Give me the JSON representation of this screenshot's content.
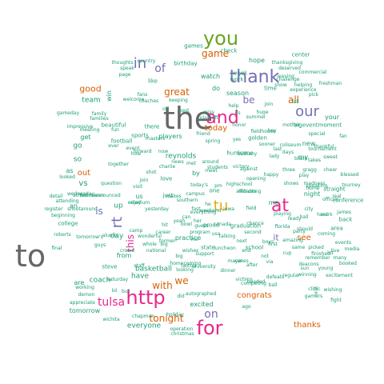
{
  "palette": {
    "grey": "#666666",
    "teal": "#1b9e77",
    "orange": "#d95f02",
    "purple": "#7570b3",
    "magenta": "#e7298a",
    "green": "#66a61e",
    "gold": "#e6ab02",
    "brown": "#a6761d"
  },
  "words": [
    {
      "text": "the",
      "color": "grey"
    },
    {
      "text": "to",
      "color": "grey"
    },
    {
      "text": "you",
      "color": "green"
    },
    {
      "text": "and",
      "color": "magenta"
    },
    {
      "text": "http",
      "color": "magenta"
    },
    {
      "text": "for",
      "color": "magenta"
    },
    {
      "text": "at",
      "color": "magenta"
    },
    {
      "text": "thank",
      "color": "purple"
    },
    {
      "text": "our",
      "color": "purple"
    },
    {
      "text": "in",
      "color": "purple"
    },
    {
      "text": "game",
      "color": "orange"
    },
    {
      "text": "of",
      "color": "purple"
    },
    {
      "text": "tu",
      "color": "gold"
    },
    {
      "text": "all",
      "color": "orange"
    },
    {
      "text": "tulsa",
      "color": "magenta"
    },
    {
      "text": "rt",
      "color": "purple"
    },
    {
      "text": "great",
      "color": "orange"
    },
    {
      "text": "with",
      "color": "orange"
    },
    {
      "text": "we",
      "color": "orange"
    },
    {
      "text": "on",
      "color": "purple"
    },
    {
      "text": "good",
      "color": "orange"
    },
    {
      "text": "this",
      "color": "magenta"
    },
    {
      "text": "tonight",
      "color": "orange"
    },
    {
      "text": "thanks",
      "color": "orange"
    },
    {
      "text": "today",
      "color": "orange"
    },
    {
      "text": "congrats",
      "color": "orange"
    },
    {
      "text": "out",
      "color": "orange"
    },
    {
      "text": "be",
      "color": "purple"
    },
    {
      "text": "is",
      "color": "purple"
    },
    {
      "text": "see",
      "color": "orange"
    },
    {
      "text": "it",
      "color": "purple"
    },
    {
      "text": "team",
      "color": "teal"
    },
    {
      "text": "coach",
      "color": "teal"
    },
    {
      "text": "basketball",
      "color": "teal"
    },
    {
      "text": "day",
      "color": "teal"
    },
    {
      "text": "have",
      "color": "teal"
    },
    {
      "text": "are",
      "color": "teal"
    },
    {
      "text": "from",
      "color": "teal"
    },
    {
      "text": "go",
      "color": "teal"
    },
    {
      "text": "vs",
      "color": "teal"
    },
    {
      "text": "so",
      "color": "teal"
    },
    {
      "text": "up",
      "color": "teal"
    },
    {
      "text": "us",
      "color": "teal"
    },
    {
      "text": "your",
      "color": "teal"
    },
    {
      "text": "my",
      "color": "teal"
    },
    {
      "text": "an",
      "color": "teal"
    },
    {
      "text": "as",
      "color": "teal"
    },
    {
      "text": "do",
      "color": "teal"
    },
    {
      "text": "by",
      "color": "teal"
    },
    {
      "text": "me",
      "color": "teal"
    },
    {
      "text": "new",
      "color": "teal"
    },
    {
      "text": "get",
      "color": "teal"
    },
    {
      "text": "center",
      "color": "teal"
    },
    {
      "text": "night",
      "color": "teal"
    },
    {
      "text": "reynolds",
      "color": "teal"
    },
    {
      "text": "everyone",
      "color": "teal"
    },
    {
      "text": "tomorrow",
      "color": "teal"
    },
    {
      "text": "excited",
      "color": "teal"
    },
    {
      "text": "players",
      "color": "teal"
    },
    {
      "text": "season",
      "color": "teal"
    },
    {
      "text": "football",
      "color": "teal"
    },
    {
      "text": "golden",
      "color": "teal"
    },
    {
      "text": "hurricane",
      "color": "teal"
    },
    {
      "text": "back",
      "color": "teal"
    },
    {
      "text": "area",
      "color": "teal"
    },
    {
      "text": "practice",
      "color": "teal"
    },
    {
      "text": "watch",
      "color": "teal"
    },
    {
      "text": "hope",
      "color": "teal"
    },
    {
      "text": "week",
      "color": "teal"
    },
    {
      "text": "work",
      "color": "teal"
    },
    {
      "text": "school",
      "color": "teal"
    },
    {
      "text": "college",
      "color": "teal"
    },
    {
      "text": "sports",
      "color": "teal"
    },
    {
      "text": "proud",
      "color": "teal"
    },
    {
      "text": "state",
      "color": "teal"
    },
    {
      "text": "one",
      "color": "teal"
    },
    {
      "text": "there",
      "color": "teal"
    },
    {
      "text": "just",
      "color": "teal"
    },
    {
      "text": "love",
      "color": "teal"
    },
    {
      "text": "time",
      "color": "teal"
    },
    {
      "text": "win",
      "color": "teal"
    },
    {
      "text": "like",
      "color": "teal"
    },
    {
      "text": "games",
      "color": "teal"
    },
    {
      "text": "check",
      "color": "teal"
    },
    {
      "text": "thanksgiving",
      "color": "teal"
    },
    {
      "text": "straight",
      "color": "teal"
    },
    {
      "text": "birthday",
      "color": "teal"
    },
    {
      "text": "deserved",
      "color": "teal"
    },
    {
      "text": "freshman",
      "color": "teal"
    },
    {
      "text": "helping",
      "color": "teal"
    },
    {
      "text": "commercial",
      "color": "teal"
    },
    {
      "text": "challenge",
      "color": "teal"
    },
    {
      "text": "experience",
      "color": "teal"
    },
    {
      "text": "thoughts",
      "color": "teal"
    },
    {
      "text": "speak",
      "color": "teal"
    },
    {
      "text": "country",
      "color": "teal"
    },
    {
      "text": "welcome",
      "color": "teal"
    },
    {
      "text": "coaches",
      "color": "teal"
    },
    {
      "text": "keeping",
      "color": "teal"
    },
    {
      "text": "family",
      "color": "teal"
    },
    {
      "text": "families",
      "color": "teal"
    },
    {
      "text": "impressive",
      "color": "teal"
    },
    {
      "text": "gameday",
      "color": "teal"
    },
    {
      "text": "beautiful",
      "color": "teal"
    },
    {
      "text": "forward",
      "color": "teal"
    },
    {
      "text": "sweet",
      "color": "teal"
    },
    {
      "text": "bigeventmoment",
      "color": "teal"
    },
    {
      "text": "fieldhouse",
      "color": "teal"
    },
    {
      "text": "tournament",
      "color": "teal"
    },
    {
      "text": "thankful",
      "color": "teal"
    },
    {
      "text": "black",
      "color": "teal"
    },
    {
      "text": "takes",
      "color": "teal"
    },
    {
      "text": "three",
      "color": "teal"
    },
    {
      "text": "gragg",
      "color": "teal"
    },
    {
      "text": "cheer",
      "color": "teal"
    },
    {
      "text": "blessed",
      "color": "teal"
    },
    {
      "text": "madness",
      "color": "teal"
    },
    {
      "text": "speaking",
      "color": "teal"
    },
    {
      "text": "tourney",
      "color": "teal"
    },
    {
      "text": "official",
      "color": "teal"
    },
    {
      "text": "conference",
      "color": "teal"
    },
    {
      "text": "chance",
      "color": "teal"
    },
    {
      "text": "graduation",
      "color": "teal"
    },
    {
      "text": "florida",
      "color": "teal"
    },
    {
      "text": "amazing",
      "color": "teal"
    },
    {
      "text": "coming",
      "color": "teal"
    },
    {
      "text": "same",
      "color": "teal"
    },
    {
      "text": "picked",
      "color": "teal"
    },
    {
      "text": "media",
      "color": "teal"
    },
    {
      "text": "remember",
      "color": "teal"
    },
    {
      "text": "many",
      "color": "teal"
    },
    {
      "text": "deacons",
      "color": "teal"
    },
    {
      "text": "regular",
      "color": "teal"
    },
    {
      "text": "winning",
      "color": "teal"
    },
    {
      "text": "booked",
      "color": "teal"
    },
    {
      "text": "excitement",
      "color": "teal"
    },
    {
      "text": "defeats",
      "color": "teal"
    },
    {
      "text": "clinic",
      "color": "teal"
    },
    {
      "text": "gamers",
      "color": "teal"
    },
    {
      "text": "headed",
      "color": "teal"
    },
    {
      "text": "victims",
      "color": "teal"
    },
    {
      "text": "autographed",
      "color": "teal"
    },
    {
      "text": "holiday",
      "color": "teal"
    },
    {
      "text": "operation",
      "color": "teal"
    },
    {
      "text": "christmas",
      "color": "teal"
    },
    {
      "text": "chapman",
      "color": "teal"
    },
    {
      "text": "wichita",
      "color": "teal"
    },
    {
      "text": "working",
      "color": "teal"
    },
    {
      "text": "demon",
      "color": "teal"
    },
    {
      "text": "appreciate",
      "color": "teal"
    },
    {
      "text": "roberts",
      "color": "teal"
    },
    {
      "text": "alumni",
      "color": "teal"
    },
    {
      "text": "beginning",
      "color": "teal"
    },
    {
      "text": "shootaround",
      "color": "teal"
    },
    {
      "text": "athletics",
      "color": "teal"
    },
    {
      "text": "attending",
      "color": "teal"
    },
    {
      "text": "register",
      "color": "teal"
    },
    {
      "text": "detail",
      "color": "teal"
    },
    {
      "text": "steve",
      "color": "teal"
    },
    {
      "text": "saturday",
      "color": "teal"
    },
    {
      "text": "homecoming",
      "color": "teal"
    },
    {
      "text": "national",
      "color": "teal"
    },
    {
      "text": "wonderful",
      "color": "teal"
    },
    {
      "text": "program",
      "color": "teal"
    },
    {
      "text": "campus",
      "color": "teal"
    },
    {
      "text": "southern",
      "color": "teal"
    },
    {
      "text": "charlie",
      "color": "teal"
    },
    {
      "text": "students",
      "color": "teal"
    },
    {
      "text": "against",
      "color": "teal"
    },
    {
      "text": "highschool",
      "color": "teal"
    },
    {
      "text": "opening",
      "color": "teal"
    },
    {
      "text": "yesterday",
      "color": "teal"
    },
    {
      "text": "everything",
      "color": "teal"
    },
    {
      "text": "weekend",
      "color": "teal"
    },
    {
      "text": "recruiting",
      "color": "teal"
    },
    {
      "text": "university",
      "color": "teal"
    },
    {
      "text": "looking",
      "color": "teal"
    },
    {
      "text": "stadium",
      "color": "teal"
    },
    {
      "text": "halloween",
      "color": "teal"
    },
    {
      "text": "question",
      "color": "teal"
    },
    {
      "text": "wednesday",
      "color": "teal"
    },
    {
      "text": "announced",
      "color": "teal"
    },
    {
      "text": "affiliates",
      "color": "teal"
    },
    {
      "text": "makes",
      "color": "teal"
    },
    {
      "text": "former",
      "color": "teal"
    },
    {
      "text": "career",
      "color": "teal"
    },
    {
      "text": "wishes",
      "color": "teal"
    },
    {
      "text": "luncheon",
      "color": "teal"
    },
    {
      "text": "twitter",
      "color": "teal"
    },
    {
      "text": "dinner",
      "color": "teal"
    },
    {
      "text": "competing",
      "color": "teal"
    },
    {
      "text": "friend",
      "color": "teal"
    },
    {
      "text": "masters",
      "color": "teal"
    },
    {
      "text": "coliseum",
      "color": "teal"
    },
    {
      "text": "bethany",
      "color": "teal"
    },
    {
      "text": "playing",
      "color": "teal"
    },
    {
      "text": "finished",
      "color": "teal"
    },
    {
      "text": "talking",
      "color": "teal"
    },
    {
      "text": "support",
      "color": "teal"
    },
    {
      "text": "victory",
      "color": "teal"
    },
    {
      "text": "mother",
      "color": "teal"
    },
    {
      "text": "huge",
      "color": "teal"
    },
    {
      "text": "shows",
      "color": "teal"
    },
    {
      "text": "honor",
      "color": "teal"
    },
    {
      "text": "play",
      "color": "teal"
    },
    {
      "text": "news",
      "color": "teal"
    },
    {
      "text": "best",
      "color": "teal"
    },
    {
      "text": "field",
      "color": "teal"
    },
    {
      "text": "next",
      "color": "teal"
    },
    {
      "text": "fans",
      "color": "teal"
    },
    {
      "text": "fun",
      "color": "teal"
    },
    {
      "text": "big",
      "color": "teal"
    },
    {
      "text": "first",
      "color": "teal"
    },
    {
      "text": "last",
      "color": "teal"
    },
    {
      "text": "home",
      "color": "teal"
    },
    {
      "text": "happy",
      "color": "teal"
    },
    {
      "text": "help",
      "color": "teal"
    },
    {
      "text": "event",
      "color": "teal"
    },
    {
      "text": "events",
      "color": "teal"
    },
    {
      "text": "live",
      "color": "teal"
    },
    {
      "text": "lady",
      "color": "teal"
    },
    {
      "text": "looked",
      "color": "teal"
    },
    {
      "text": "miss",
      "color": "teal"
    },
    {
      "text": "days",
      "color": "teal"
    },
    {
      "text": "bowl",
      "color": "teal"
    },
    {
      "text": "camp",
      "color": "teal"
    },
    {
      "text": "after",
      "color": "teal"
    },
    {
      "text": "today's",
      "color": "teal"
    },
    {
      "text": "canes",
      "color": "teal"
    },
    {
      "text": "how",
      "color": "teal"
    },
    {
      "text": "tomorrow's",
      "color": "teal"
    },
    {
      "text": "whole",
      "color": "teal"
    },
    {
      "text": "crowd",
      "color": "teal"
    },
    {
      "text": "guys",
      "color": "teal"
    },
    {
      "text": "final",
      "color": "teal"
    },
    {
      "text": "leaving",
      "color": "teal"
    },
    {
      "text": "meeting",
      "color": "teal"
    },
    {
      "text": "summer",
      "color": "teal"
    },
    {
      "text": "together",
      "color": "teal"
    },
    {
      "text": "pick",
      "color": "teal"
    },
    {
      "text": "spring",
      "color": "teal"
    },
    {
      "text": "sooner",
      "color": "teal"
    },
    {
      "text": "around",
      "color": "teal"
    },
    {
      "text": "second",
      "color": "teal"
    },
    {
      "text": "fall",
      "color": "teal"
    },
    {
      "text": "page",
      "color": "teal"
    },
    {
      "text": "visit",
      "color": "teal"
    },
    {
      "text": "fan",
      "color": "teal"
    },
    {
      "text": "oral",
      "color": "teal"
    },
    {
      "text": "ball",
      "color": "teal"
    },
    {
      "text": "end",
      "color": "teal"
    },
    {
      "text": "real",
      "color": "teal"
    },
    {
      "text": "mark",
      "color": "teal"
    },
    {
      "text": "hard",
      "color": "teal"
    },
    {
      "text": "special",
      "color": "teal"
    },
    {
      "text": "lot",
      "color": "teal"
    },
    {
      "text": "join",
      "color": "teal"
    },
    {
      "text": "fight",
      "color": "teal"
    },
    {
      "text": "james",
      "color": "teal"
    },
    {
      "text": "young",
      "color": "teal"
    },
    {
      "text": "canada",
      "color": "teal"
    },
    {
      "text": "mayor",
      "color": "teal"
    },
    {
      "text": "city",
      "color": "teal"
    },
    {
      "text": "wishing",
      "color": "teal"
    },
    {
      "text": "ready",
      "color": "teal"
    },
    {
      "text": "should",
      "color": "teal"
    },
    {
      "text": "party",
      "color": "teal"
    },
    {
      "text": "boys",
      "color": "teal"
    },
    {
      "text": "hall",
      "color": "teal"
    },
    {
      "text": "via",
      "color": "teal"
    },
    {
      "text": "cup",
      "color": "teal"
    },
    {
      "text": "sun",
      "color": "teal"
    },
    {
      "text": "yeah",
      "color": "teal"
    },
    {
      "text": "play-off",
      "color": "teal"
    },
    {
      "text": "usa",
      "color": "teal"
    },
    {
      "text": "iowa",
      "color": "teal"
    },
    {
      "text": "ever",
      "color": "teal"
    },
    {
      "text": "staff",
      "color": "teal"
    },
    {
      "text": "join",
      "color": "teal"
    },
    {
      "text": "met",
      "color": "teal"
    },
    {
      "text": "enjoy",
      "color": "teal"
    },
    {
      "text": "shot",
      "color": "teal"
    },
    {
      "text": "meet",
      "color": "teal"
    },
    {
      "text": "hey",
      "color": "teal"
    },
    {
      "text": "guess",
      "color": "teal"
    },
    {
      "text": "fast",
      "color": "teal"
    },
    {
      "text": "lol",
      "color": "teal"
    },
    {
      "text": "did",
      "color": "teal"
    },
    {
      "text": "ago",
      "color": "teal"
    },
    {
      "text": "hit",
      "color": "teal"
    },
    {
      "text": "its",
      "color": "teal"
    },
    {
      "text": "yes",
      "color": "teal"
    },
    {
      "text": "show",
      "color": "teal"
    },
    {
      "text": "pm",
      "color": "teal"
    },
    {
      "text": "he",
      "color": "teal"
    },
    {
      "text": "her",
      "color": "teal"
    },
    {
      "text": "his",
      "color": "teal"
    },
    {
      "text": "not",
      "color": "teal"
    },
    {
      "text": "but",
      "color": "teal"
    },
    {
      "text": "off",
      "color": "teal"
    },
    {
      "text": "now",
      "color": "teal"
    },
    {
      "text": "can",
      "color": "teal"
    },
    {
      "text": "big",
      "color": "teal"
    },
    {
      "text": "two",
      "color": "teal"
    },
    {
      "text": "way",
      "color": "teal"
    },
    {
      "text": "let",
      "color": "teal"
    },
    {
      "text": "too",
      "color": "teal"
    },
    {
      "text": "all",
      "color": "teal"
    },
    {
      "text": "had",
      "color": "teal"
    },
    {
      "text": "was",
      "color": "teal"
    },
    {
      "text": "our",
      "color": "teal"
    },
    {
      "text": "now",
      "color": "teal"
    },
    {
      "text": "into",
      "color": "teal"
    },
    {
      "text": "put",
      "color": "teal"
    },
    {
      "text": "run",
      "color": "teal"
    },
    {
      "text": "only",
      "color": "teal"
    },
    {
      "text": "set",
      "color": "teal"
    },
    {
      "text": "old",
      "color": "teal"
    },
    {
      "text": "far",
      "color": "teal"
    },
    {
      "text": "kid",
      "color": "teal"
    },
    {
      "text": "sat",
      "color": "teal"
    },
    {
      "text": "tv",
      "color": "teal"
    },
    {
      "text": "am",
      "color": "teal"
    },
    {
      "text": "ok",
      "color": "teal"
    },
    {
      "text": "hi",
      "color": "teal"
    }
  ]
}
